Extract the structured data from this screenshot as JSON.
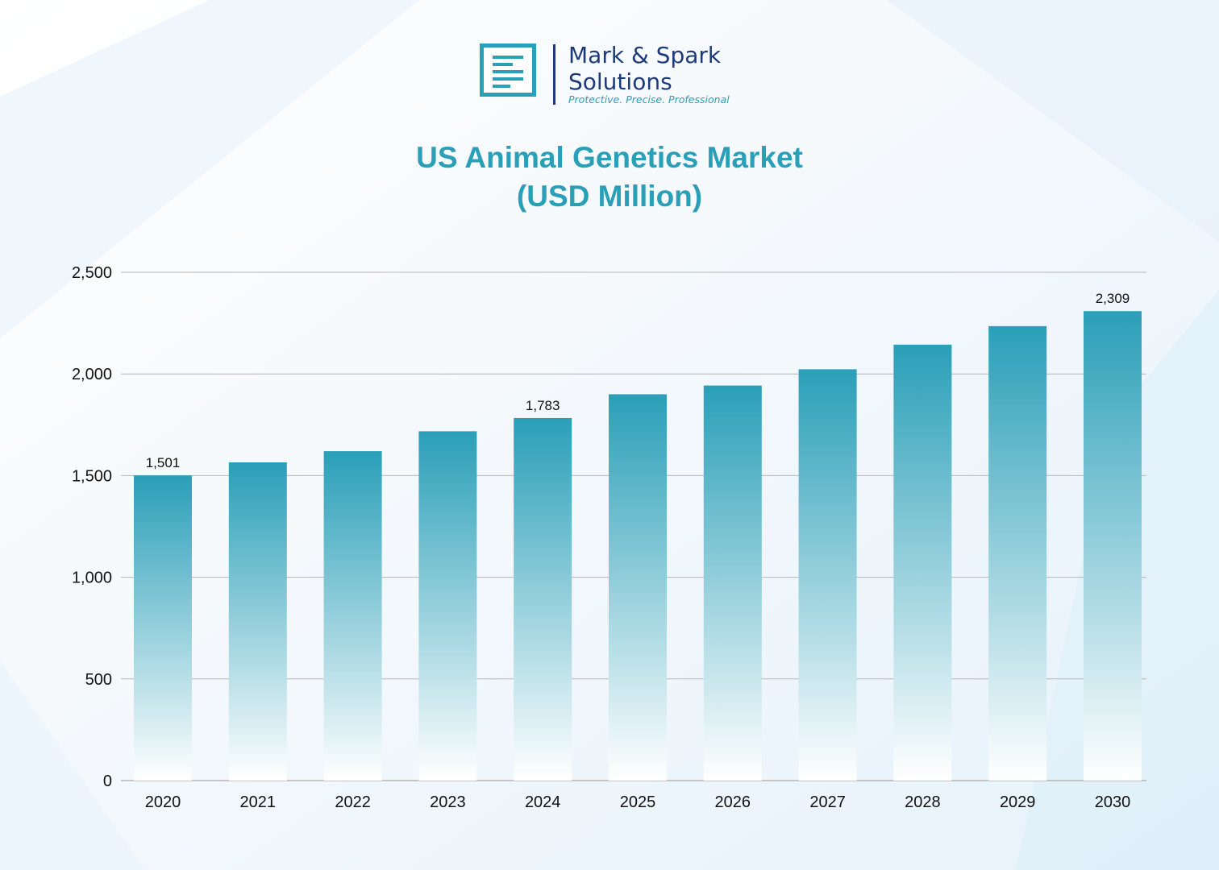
{
  "logo": {
    "name_line1": "Mark & Spark",
    "name_line2": "Solutions",
    "tagline": "Protective. Precise. Professional"
  },
  "colors": {
    "bar_top": "#2a9fb8",
    "bar_bottom": "#ffffff",
    "title": "#2a9fb8",
    "logo_navy": "#1d3a7a",
    "grid": "#b5b5b5"
  },
  "chart_data": {
    "type": "bar",
    "title_line1": "US Animal Genetics Market",
    "title_line2": "(USD Million)",
    "xlabel": "",
    "ylabel": "",
    "categories": [
      "2020",
      "2021",
      "2022",
      "2023",
      "2024",
      "2025",
      "2026",
      "2027",
      "2028",
      "2029",
      "2030"
    ],
    "values": [
      1501,
      1565,
      1620,
      1718,
      1783,
      1900,
      1943,
      2023,
      2144,
      2235,
      2309
    ],
    "data_labels": [
      {
        "index": 0,
        "text": "1,501"
      },
      {
        "index": 4,
        "text": "1,783"
      },
      {
        "index": 10,
        "text": "2,309"
      }
    ],
    "yticks": [
      {
        "value": 0,
        "label": "0"
      },
      {
        "value": 500,
        "label": "500"
      },
      {
        "value": 1000,
        "label": "1,000"
      },
      {
        "value": 1500,
        "label": "1,500"
      },
      {
        "value": 2000,
        "label": "2,000"
      },
      {
        "value": 2500,
        "label": "2,500"
      }
    ],
    "ylim": [
      0,
      2500
    ],
    "grid": true,
    "legend": "none"
  }
}
